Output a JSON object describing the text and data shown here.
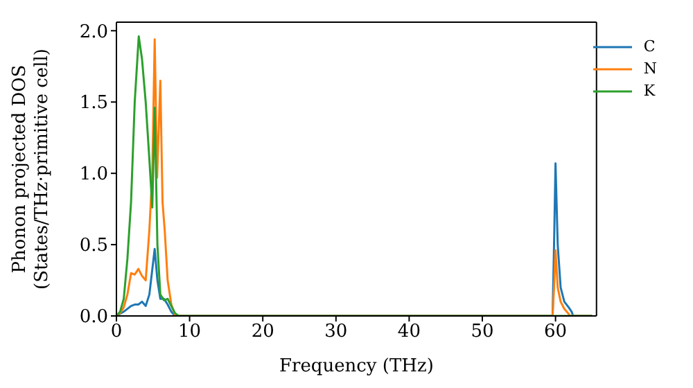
{
  "chart_data": {
    "type": "line",
    "xlabel": "Frequency (THz)",
    "ylabel": "Phonon projected DOS\n(States/THz·primitive cell)",
    "xlim": [
      0,
      65.6
    ],
    "xticks": [
      0,
      10,
      20,
      30,
      40,
      50,
      60
    ],
    "ylim": [
      0,
      2.06
    ],
    "yticks": [
      {
        "value": 0,
        "label": "0.0"
      },
      {
        "value": 0.5,
        "label": "0.5"
      },
      {
        "value": 1,
        "label": "1.0"
      },
      {
        "value": 1.5,
        "label": "1.5"
      },
      {
        "value": 2,
        "label": "2.0"
      }
    ],
    "legend": "top right",
    "marker": "none",
    "line_style": "solid",
    "series": [
      {
        "name": "C",
        "color": "#1f77b4",
        "x": [
          0,
          1,
          2,
          2.5,
          3,
          3.5,
          4,
          4.5,
          5.23,
          5.6,
          6,
          6.5,
          7,
          7.5,
          8,
          59.6,
          59.8,
          60,
          60.3,
          60.7,
          61.2,
          61.8,
          62.2,
          62.4,
          65
        ],
        "values": [
          0,
          0.03,
          0.07,
          0.08,
          0.08,
          0.1,
          0.07,
          0.15,
          0.47,
          0.25,
          0.12,
          0.12,
          0.08,
          0.03,
          0,
          0,
          0.5,
          1.07,
          0.5,
          0.2,
          0.1,
          0.06,
          0.03,
          0,
          0
        ]
      },
      {
        "name": "N",
        "color": "#ff7f0e",
        "x": [
          0,
          0.5,
          1,
          1.5,
          2,
          2.5,
          3,
          3.5,
          4,
          4.5,
          4.9,
          5.23,
          5.56,
          6,
          6.3,
          6.6,
          7,
          7.5,
          8,
          8.5,
          59.6,
          59.8,
          60,
          60.3,
          60.7,
          61.2,
          61.7,
          62,
          65
        ],
        "values": [
          0,
          0.02,
          0.06,
          0.15,
          0.3,
          0.29,
          0.33,
          0.28,
          0.25,
          0.6,
          1,
          1.94,
          0.97,
          1.65,
          0.8,
          0.6,
          0.25,
          0.08,
          0.01,
          0,
          0,
          0.2,
          0.46,
          0.2,
          0.1,
          0.05,
          0.02,
          0,
          0
        ]
      },
      {
        "name": "K",
        "color": "#2ca02c",
        "x": [
          0,
          0.5,
          1,
          1.5,
          2,
          2.5,
          3.05,
          3.5,
          4,
          4.5,
          4.9,
          5.23,
          5.6,
          6,
          6.5,
          7,
          7.5,
          8,
          8.5,
          65
        ],
        "values": [
          0,
          0.03,
          0.12,
          0.4,
          0.8,
          1.5,
          1.96,
          1.8,
          1.5,
          1.1,
          0.76,
          1.46,
          0.5,
          0.15,
          0.11,
          0.12,
          0.07,
          0.02,
          0,
          0
        ]
      }
    ]
  }
}
